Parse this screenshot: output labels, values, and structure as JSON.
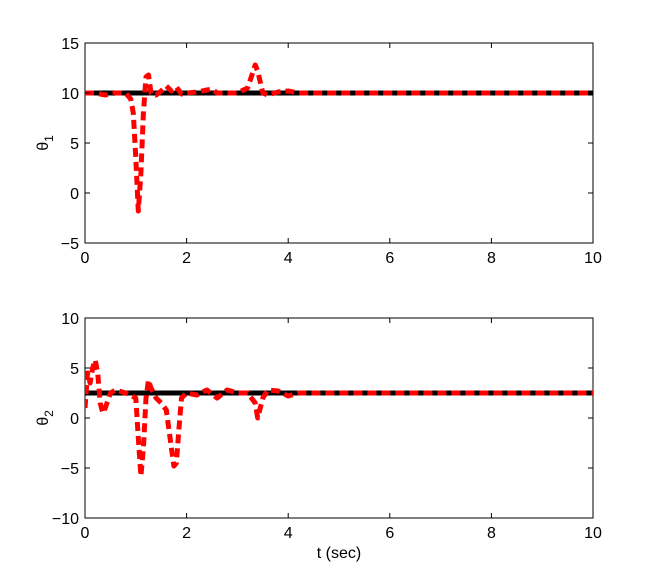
{
  "chart_data": [
    {
      "type": "line",
      "xlabel": "",
      "ylabel": "θ",
      "ylabel_sub": "1",
      "xlim": [
        0,
        10
      ],
      "ylim": [
        -5,
        15
      ],
      "xticks": [
        0,
        2,
        4,
        6,
        8,
        10
      ],
      "yticks": [
        -5,
        0,
        5,
        10,
        15
      ],
      "grid": false,
      "series": [
        {
          "style": "solid",
          "color": "#000000",
          "x": [
            0,
            10
          ],
          "y": [
            10,
            10
          ]
        },
        {
          "style": "dashed",
          "color": "#ff0000",
          "x": [
            0,
            0.2,
            0.4,
            0.6,
            0.8,
            0.9,
            0.95,
            1.0,
            1.05,
            1.1,
            1.15,
            1.2,
            1.25,
            1.3,
            1.4,
            1.5,
            1.6,
            1.7,
            1.8,
            1.9,
            2.0,
            2.2,
            2.4,
            2.5,
            2.6,
            2.8,
            3.0,
            3.2,
            3.3,
            3.35,
            3.4,
            3.5,
            3.6,
            3.8,
            4.0,
            4.2,
            10
          ],
          "y": [
            10,
            10,
            9.8,
            10,
            10,
            9.4,
            8,
            3.5,
            -1.8,
            2,
            8,
            11.6,
            11.8,
            10,
            9.8,
            10.2,
            10.7,
            10.2,
            10.6,
            9.9,
            10,
            10.1,
            10.3,
            10.4,
            10,
            10,
            10,
            10.5,
            12,
            12.8,
            12.2,
            10,
            9.8,
            10.1,
            10.2,
            10,
            10
          ]
        }
      ]
    },
    {
      "type": "line",
      "xlabel": "t (sec)",
      "ylabel": "θ",
      "ylabel_sub": "2",
      "xlim": [
        0,
        10
      ],
      "ylim": [
        -10,
        10
      ],
      "xticks": [
        0,
        2,
        4,
        6,
        8,
        10
      ],
      "yticks": [
        -10,
        -5,
        0,
        5,
        10
      ],
      "grid": false,
      "series": [
        {
          "style": "solid",
          "color": "#000000",
          "x": [
            0,
            10
          ],
          "y": [
            2.5,
            2.5
          ]
        },
        {
          "style": "dashed",
          "color": "#ff0000",
          "x": [
            0,
            0.05,
            0.1,
            0.15,
            0.2,
            0.25,
            0.3,
            0.35,
            0.4,
            0.5,
            0.6,
            0.8,
            1.0,
            1.05,
            1.1,
            1.15,
            1.2,
            1.25,
            1.3,
            1.4,
            1.5,
            1.6,
            1.7,
            1.75,
            1.8,
            1.85,
            1.9,
            2.0,
            2.2,
            2.4,
            2.6,
            2.8,
            3.0,
            3.2,
            3.35,
            3.4,
            3.5,
            3.6,
            3.8,
            4.0,
            4.2,
            10
          ],
          "y": [
            1,
            4.5,
            3.5,
            5,
            5.8,
            4.5,
            1.5,
            0.5,
            1,
            2.5,
            2.8,
            2.5,
            2,
            -2,
            -5.8,
            -3,
            2,
            3.8,
            3,
            2,
            1.5,
            0.8,
            -3,
            -4.8,
            -4.5,
            -1,
            2,
            2.5,
            2.3,
            2.8,
            2,
            2.8,
            2.5,
            2.5,
            1.5,
            0,
            2,
            2.8,
            2.7,
            2.2,
            2.5,
            2.5
          ]
        }
      ]
    }
  ]
}
